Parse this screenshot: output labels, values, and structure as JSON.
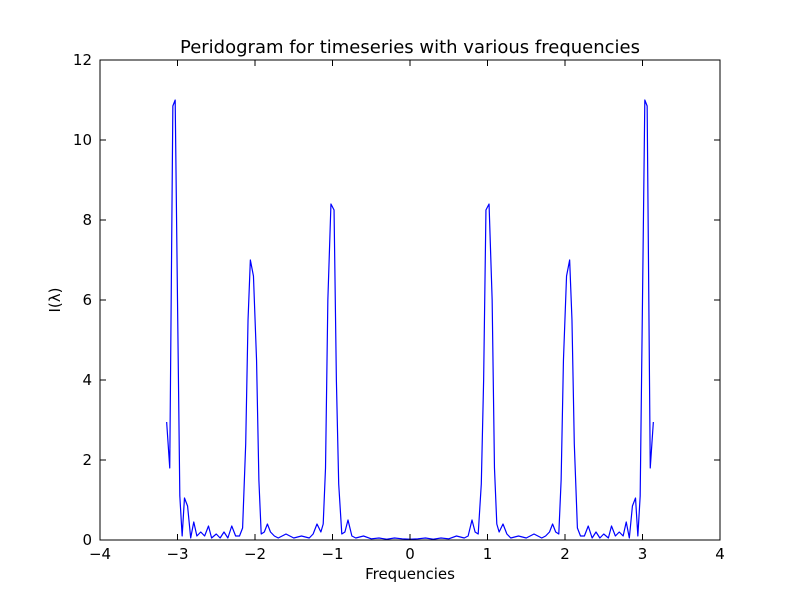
{
  "chart_data": {
    "type": "line",
    "title": "Peridogram for timeseries with various frequencies",
    "xlabel": "Frequencies",
    "ylabel": "I(λ)",
    "xlim": [
      -4,
      4
    ],
    "ylim": [
      0,
      12
    ],
    "xticks": [
      -4,
      -3,
      -2,
      -1,
      0,
      1,
      2,
      3,
      4
    ],
    "xtick_labels": [
      "−4",
      "−3",
      "−2",
      "−1",
      "0",
      "1",
      "2",
      "3",
      "4"
    ],
    "yticks": [
      0,
      2,
      4,
      6,
      8,
      10,
      12
    ],
    "ytick_labels": [
      "0",
      "2",
      "4",
      "6",
      "8",
      "10",
      "12"
    ],
    "grid": false,
    "legend": "none",
    "series": [
      {
        "color": "#0000ff",
        "x": [
          -3.14,
          -3.1,
          -3.06,
          -3.03,
          -3.0,
          -2.97,
          -2.94,
          -2.91,
          -2.87,
          -2.83,
          -2.79,
          -2.75,
          -2.7,
          -2.65,
          -2.6,
          -2.56,
          -2.5,
          -2.45,
          -2.4,
          -2.35,
          -2.3,
          -2.25,
          -2.2,
          -2.16,
          -2.12,
          -2.09,
          -2.06,
          -2.02,
          -1.98,
          -1.95,
          -1.92,
          -1.88,
          -1.84,
          -1.8,
          -1.75,
          -1.7,
          -1.6,
          -1.5,
          -1.4,
          -1.3,
          -1.25,
          -1.2,
          -1.15,
          -1.12,
          -1.09,
          -1.06,
          -1.02,
          -0.98,
          -0.95,
          -0.92,
          -0.88,
          -0.84,
          -0.8,
          -0.75,
          -0.7,
          -0.6,
          -0.5,
          -0.4,
          -0.3,
          -0.2,
          -0.1,
          0.0,
          0.1,
          0.2,
          0.3,
          0.4,
          0.5,
          0.6,
          0.7,
          0.75,
          0.8,
          0.84,
          0.88,
          0.92,
          0.95,
          0.98,
          1.02,
          1.06,
          1.09,
          1.12,
          1.15,
          1.2,
          1.25,
          1.3,
          1.4,
          1.5,
          1.6,
          1.7,
          1.75,
          1.8,
          1.84,
          1.88,
          1.92,
          1.95,
          1.98,
          2.02,
          2.06,
          2.09,
          2.12,
          2.16,
          2.2,
          2.25,
          2.3,
          2.35,
          2.4,
          2.45,
          2.5,
          2.56,
          2.6,
          2.65,
          2.7,
          2.75,
          2.79,
          2.83,
          2.87,
          2.91,
          2.94,
          2.97,
          3.0,
          3.03,
          3.06,
          3.1,
          3.14
        ],
        "y": [
          2.95,
          1.8,
          10.85,
          11.0,
          6.0,
          1.1,
          0.1,
          1.05,
          0.85,
          0.05,
          0.45,
          0.1,
          0.2,
          0.1,
          0.35,
          0.05,
          0.15,
          0.05,
          0.2,
          0.05,
          0.35,
          0.1,
          0.1,
          0.3,
          2.4,
          5.5,
          7.0,
          6.6,
          4.5,
          1.5,
          0.15,
          0.2,
          0.4,
          0.2,
          0.1,
          0.05,
          0.15,
          0.05,
          0.1,
          0.05,
          0.15,
          0.4,
          0.2,
          0.4,
          1.8,
          6.0,
          8.4,
          8.25,
          4.0,
          1.4,
          0.15,
          0.2,
          0.5,
          0.1,
          0.05,
          0.1,
          0.03,
          0.05,
          0.02,
          0.05,
          0.03,
          0.02,
          0.03,
          0.05,
          0.02,
          0.05,
          0.03,
          0.1,
          0.05,
          0.1,
          0.5,
          0.2,
          0.15,
          1.4,
          4.0,
          8.25,
          8.4,
          6.0,
          1.8,
          0.4,
          0.2,
          0.4,
          0.15,
          0.05,
          0.1,
          0.05,
          0.15,
          0.05,
          0.1,
          0.2,
          0.4,
          0.2,
          0.15,
          1.5,
          4.5,
          6.6,
          7.0,
          5.5,
          2.4,
          0.3,
          0.1,
          0.1,
          0.35,
          0.05,
          0.2,
          0.05,
          0.15,
          0.05,
          0.35,
          0.1,
          0.2,
          0.1,
          0.45,
          0.05,
          0.85,
          1.05,
          0.1,
          1.1,
          6.0,
          11.0,
          10.85,
          1.8,
          2.95
        ]
      }
    ]
  }
}
